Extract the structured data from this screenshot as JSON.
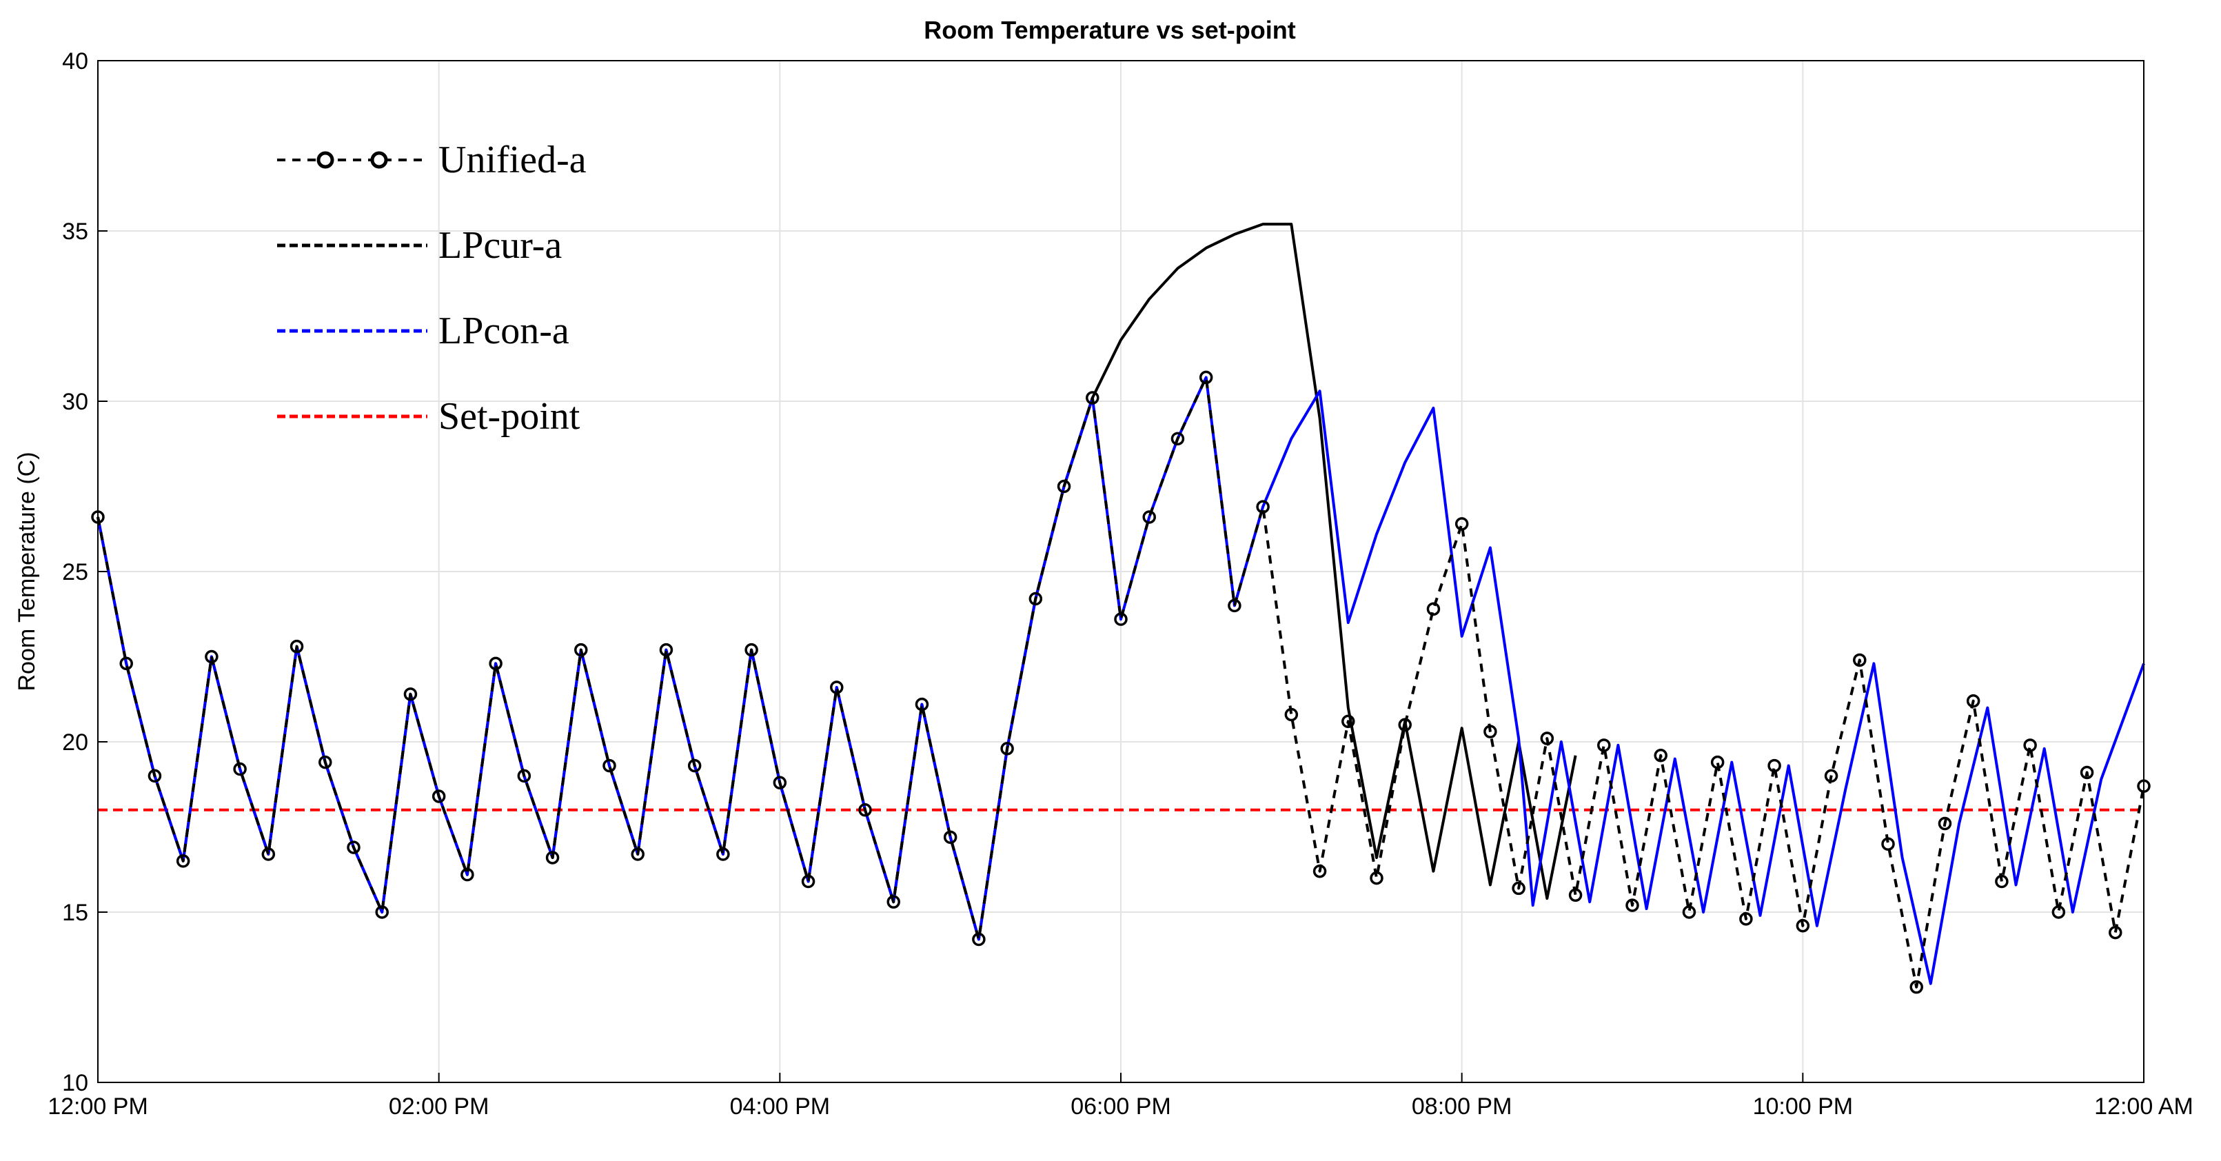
{
  "chart_data": {
    "type": "line",
    "title": "Room Temperature vs set-point",
    "xlabel": "",
    "ylabel": "Room Temperature (C)",
    "ylim": [
      10,
      40
    ],
    "xlim": [
      0,
      720
    ],
    "x_unit": "minutes-from-start",
    "yticks": [
      10,
      15,
      20,
      25,
      30,
      35,
      40
    ],
    "xticks": [
      {
        "x": 0,
        "label": "12:00 PM"
      },
      {
        "x": 120,
        "label": "02:00 PM"
      },
      {
        "x": 240,
        "label": "04:00 PM"
      },
      {
        "x": 360,
        "label": "06:00 PM"
      },
      {
        "x": 480,
        "label": "08:00 PM"
      },
      {
        "x": 600,
        "label": "10:00 PM"
      },
      {
        "x": 720,
        "label": "12:00 AM"
      }
    ],
    "grid": true,
    "legend_placement": "top-left",
    "series": [
      {
        "name": "LPcur-a",
        "color": "#000000",
        "style": "solid",
        "points": [
          [
            0,
            26.6
          ],
          [
            10,
            22.3
          ],
          [
            20,
            19.0
          ],
          [
            30,
            16.5
          ],
          [
            40,
            22.5
          ],
          [
            50,
            19.2
          ],
          [
            60,
            16.7
          ],
          [
            70,
            22.8
          ],
          [
            80,
            19.4
          ],
          [
            90,
            16.9
          ],
          [
            100,
            15.0
          ],
          [
            110,
            21.4
          ],
          [
            120,
            18.4
          ],
          [
            130,
            16.1
          ],
          [
            140,
            22.3
          ],
          [
            150,
            19.0
          ],
          [
            160,
            16.6
          ],
          [
            170,
            22.7
          ],
          [
            180,
            19.3
          ],
          [
            190,
            16.7
          ],
          [
            200,
            22.7
          ],
          [
            210,
            19.3
          ],
          [
            220,
            16.7
          ],
          [
            230,
            22.7
          ],
          [
            240,
            18.8
          ],
          [
            250,
            15.9
          ],
          [
            260,
            21.6
          ],
          [
            270,
            18.0
          ],
          [
            280,
            15.3
          ],
          [
            290,
            21.1
          ],
          [
            300,
            17.2
          ],
          [
            310,
            14.2
          ],
          [
            320,
            19.8
          ],
          [
            330,
            24.2
          ],
          [
            340,
            27.5
          ],
          [
            350,
            30.1
          ],
          [
            360,
            31.8
          ],
          [
            370,
            33.0
          ],
          [
            380,
            33.9
          ],
          [
            390,
            34.5
          ],
          [
            400,
            34.9
          ],
          [
            410,
            35.2
          ],
          [
            420,
            35.2
          ],
          [
            430,
            29.5
          ],
          [
            440,
            21.0
          ],
          [
            450,
            16.6
          ],
          [
            460,
            20.6
          ],
          [
            470,
            16.2
          ],
          [
            480,
            20.4
          ],
          [
            490,
            15.8
          ],
          [
            500,
            20.0
          ],
          [
            510,
            15.4
          ],
          [
            520,
            19.6
          ]
        ]
      },
      {
        "name": "LPcon-a",
        "color": "#0000ff",
        "style": "solid",
        "points": [
          [
            0,
            26.6
          ],
          [
            10,
            22.3
          ],
          [
            20,
            19.0
          ],
          [
            30,
            16.5
          ],
          [
            40,
            22.5
          ],
          [
            50,
            19.2
          ],
          [
            60,
            16.7
          ],
          [
            70,
            22.8
          ],
          [
            80,
            19.4
          ],
          [
            90,
            16.9
          ],
          [
            100,
            15.0
          ],
          [
            110,
            21.4
          ],
          [
            120,
            18.4
          ],
          [
            130,
            16.1
          ],
          [
            140,
            22.3
          ],
          [
            150,
            19.0
          ],
          [
            160,
            16.6
          ],
          [
            170,
            22.7
          ],
          [
            180,
            19.3
          ],
          [
            190,
            16.7
          ],
          [
            200,
            22.7
          ],
          [
            210,
            19.3
          ],
          [
            220,
            16.7
          ],
          [
            230,
            22.7
          ],
          [
            240,
            18.8
          ],
          [
            250,
            15.9
          ],
          [
            260,
            21.6
          ],
          [
            270,
            18.0
          ],
          [
            280,
            15.3
          ],
          [
            290,
            21.1
          ],
          [
            300,
            17.2
          ],
          [
            310,
            14.2
          ],
          [
            320,
            19.8
          ],
          [
            330,
            24.2
          ],
          [
            340,
            27.5
          ],
          [
            350,
            30.1
          ],
          [
            360,
            23.6
          ],
          [
            370,
            26.6
          ],
          [
            380,
            28.9
          ],
          [
            390,
            30.7
          ],
          [
            400,
            24.0
          ],
          [
            410,
            26.9
          ],
          [
            420,
            28.9
          ],
          [
            430,
            30.3
          ],
          [
            440,
            23.5
          ],
          [
            450,
            26.1
          ],
          [
            460,
            28.2
          ],
          [
            470,
            29.8
          ],
          [
            480,
            23.1
          ],
          [
            490,
            25.7
          ],
          [
            500,
            20.1
          ],
          [
            505,
            15.2
          ],
          [
            515,
            20.0
          ],
          [
            525,
            15.3
          ],
          [
            535,
            19.9
          ],
          [
            545,
            15.1
          ],
          [
            555,
            19.5
          ],
          [
            565,
            15.0
          ],
          [
            575,
            19.4
          ],
          [
            585,
            14.9
          ],
          [
            595,
            19.3
          ],
          [
            605,
            14.6
          ],
          [
            615,
            18.6
          ],
          [
            625,
            22.3
          ],
          [
            635,
            16.6
          ],
          [
            645,
            12.9
          ],
          [
            655,
            17.6
          ],
          [
            665,
            21.0
          ],
          [
            675,
            15.8
          ],
          [
            685,
            19.8
          ],
          [
            695,
            15.0
          ],
          [
            705,
            18.9
          ],
          [
            720,
            22.3
          ]
        ]
      },
      {
        "name": "Unified-a",
        "color": "#000000",
        "style": "dashed-circle",
        "points": [
          [
            0,
            26.6
          ],
          [
            10,
            22.3
          ],
          [
            20,
            19.0
          ],
          [
            30,
            16.5
          ],
          [
            40,
            22.5
          ],
          [
            50,
            19.2
          ],
          [
            60,
            16.7
          ],
          [
            70,
            22.8
          ],
          [
            80,
            19.4
          ],
          [
            90,
            16.9
          ],
          [
            100,
            15.0
          ],
          [
            110,
            21.4
          ],
          [
            120,
            18.4
          ],
          [
            130,
            16.1
          ],
          [
            140,
            22.3
          ],
          [
            150,
            19.0
          ],
          [
            160,
            16.6
          ],
          [
            170,
            22.7
          ],
          [
            180,
            19.3
          ],
          [
            190,
            16.7
          ],
          [
            200,
            22.7
          ],
          [
            210,
            19.3
          ],
          [
            220,
            16.7
          ],
          [
            230,
            22.7
          ],
          [
            240,
            18.8
          ],
          [
            250,
            15.9
          ],
          [
            260,
            21.6
          ],
          [
            270,
            18.0
          ],
          [
            280,
            15.3
          ],
          [
            290,
            21.1
          ],
          [
            300,
            17.2
          ],
          [
            310,
            14.2
          ],
          [
            320,
            19.8
          ],
          [
            330,
            24.2
          ],
          [
            340,
            27.5
          ],
          [
            350,
            30.1
          ],
          [
            360,
            23.6
          ],
          [
            370,
            26.6
          ],
          [
            380,
            28.9
          ],
          [
            390,
            30.7
          ],
          [
            400,
            24.0
          ],
          [
            410,
            26.9
          ],
          [
            420,
            20.8
          ],
          [
            430,
            16.2
          ],
          [
            440,
            20.6
          ],
          [
            450,
            16.0
          ],
          [
            460,
            20.5
          ],
          [
            470,
            23.9
          ],
          [
            480,
            26.4
          ],
          [
            490,
            20.3
          ],
          [
            500,
            15.7
          ],
          [
            510,
            20.1
          ],
          [
            520,
            15.5
          ],
          [
            530,
            19.9
          ],
          [
            540,
            15.2
          ],
          [
            550,
            19.6
          ],
          [
            560,
            15.0
          ],
          [
            570,
            19.4
          ],
          [
            580,
            14.8
          ],
          [
            590,
            19.3
          ],
          [
            600,
            14.6
          ],
          [
            610,
            19.0
          ],
          [
            620,
            22.4
          ],
          [
            630,
            17.0
          ],
          [
            640,
            12.8
          ],
          [
            650,
            17.6
          ],
          [
            660,
            21.2
          ],
          [
            670,
            15.9
          ],
          [
            680,
            19.9
          ],
          [
            690,
            15.0
          ],
          [
            700,
            19.1
          ],
          [
            710,
            14.4
          ],
          [
            720,
            18.7
          ]
        ]
      },
      {
        "name": "Set-point",
        "color": "#ff0000",
        "style": "dashed",
        "points": [
          [
            0,
            18.0
          ],
          [
            720,
            18.0
          ]
        ]
      }
    ],
    "legend": [
      {
        "label": "Unified-a",
        "marker": "--o--o--",
        "color": "#000000"
      },
      {
        "label": "LPcur-a",
        "marker": "--------",
        "color": "#000000"
      },
      {
        "label": "LPcon-a",
        "marker": "--------",
        "color": "#0000ff"
      },
      {
        "label": "Set-point",
        "marker": "--------",
        "color": "#ff0000"
      }
    ]
  }
}
